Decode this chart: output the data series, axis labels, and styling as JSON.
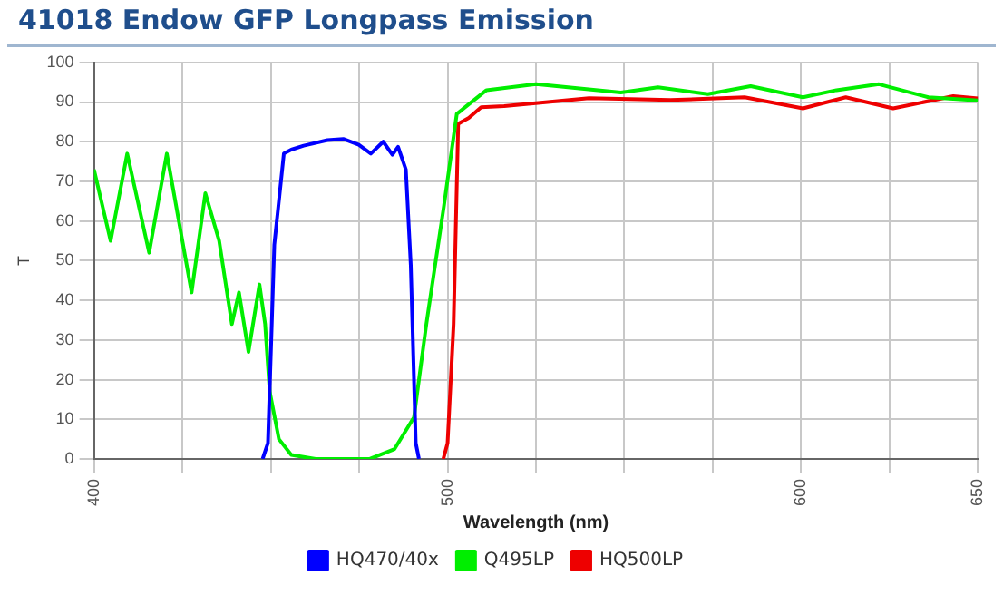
{
  "chart_data": {
    "type": "line",
    "title": "41018 Endow GFP Longpass Emission",
    "xlabel": "Wavelength (nm)",
    "ylabel": "T",
    "xlim": [
      400,
      650
    ],
    "xticks": [
      400,
      {
        "value": 425,
        "label": null
      },
      {
        "value": 450,
        "label": null
      },
      {
        "value": 475,
        "label": null
      },
      500,
      {
        "value": 525,
        "label": null
      },
      {
        "value": 550,
        "label": null
      },
      {
        "value": 575,
        "label": null
      },
      600,
      {
        "value": 625,
        "label": null
      },
      650
    ],
    "ylim": [
      0,
      100
    ],
    "yticks": [
      0,
      10,
      20,
      30,
      40,
      50,
      60,
      70,
      80,
      90,
      100
    ],
    "grid": true,
    "legend": "bottom",
    "marker": "none",
    "line_style": "solid",
    "series": [
      {
        "name": "HQ470/40x",
        "color": "#0000ff",
        "x": [
          447.7,
          449.2,
          451,
          453.7,
          455.8,
          459.3,
          466,
          470.5,
          474.9,
          478.3,
          481.8,
          484.4,
          486,
          488.2,
          489.6,
          491,
          491.9
        ],
        "values": [
          0,
          4,
          54,
          77,
          78,
          79,
          80.4,
          80.7,
          79.2,
          77,
          80,
          76.7,
          78.7,
          73,
          48.8,
          4,
          0
        ]
      },
      {
        "name": "Q495LP",
        "color": "#00ee00",
        "x": [
          400,
          404.7,
          409.4,
          415.6,
          420.6,
          427.6,
          431.5,
          435.4,
          439,
          441,
          443.7,
          446.8,
          448.4,
          449.7,
          452.3,
          455.8,
          462.7,
          478,
          485,
          490.5,
          494,
          499,
          502.6,
          511,
          525,
          549,
          559.5,
          573.6,
          585.7,
          600.5,
          610,
          622,
          636,
          650
        ],
        "values": [
          73,
          55,
          77,
          52,
          77,
          42,
          67,
          55,
          34,
          42,
          27,
          44,
          34,
          17,
          5,
          1,
          0,
          0,
          2.5,
          10.5,
          34,
          64,
          87,
          93,
          94.5,
          92.4,
          93.7,
          92,
          94,
          91.2,
          93,
          94.5,
          91.2,
          90.4
        ]
      },
      {
        "name": "HQ500LP",
        "color": "#ee0000",
        "x": [
          498.8,
          500,
          501.7,
          503,
          506,
          509.5,
          516,
          540,
          563,
          584,
          600.5,
          612.6,
          626,
          643,
          650
        ],
        "values": [
          0,
          4,
          34,
          84.5,
          86,
          88.7,
          89,
          91,
          90.5,
          91.2,
          88.4,
          91.2,
          88.4,
          91.5,
          90.9
        ]
      }
    ]
  }
}
